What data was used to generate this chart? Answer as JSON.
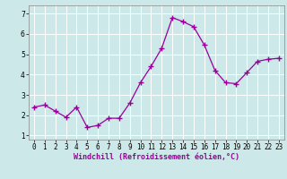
{
  "x": [
    0,
    1,
    2,
    3,
    4,
    5,
    6,
    7,
    8,
    9,
    10,
    11,
    12,
    13,
    14,
    15,
    16,
    17,
    18,
    19,
    20,
    21,
    22,
    23
  ],
  "y": [
    2.4,
    2.5,
    2.2,
    1.9,
    2.4,
    1.4,
    1.5,
    1.85,
    1.85,
    2.6,
    3.6,
    4.4,
    5.3,
    6.8,
    6.6,
    6.35,
    5.45,
    4.2,
    3.6,
    3.55,
    4.1,
    4.65,
    4.75,
    4.8
  ],
  "line_color": "#990099",
  "marker": "+",
  "marker_size": 4,
  "marker_linewidth": 1.0,
  "line_width": 0.9,
  "bg_color": "#cce8e8",
  "grid_color": "#ffffff",
  "xlabel": "Windchill (Refroidissement éolien,°C)",
  "xlabel_color": "#990099",
  "xlabel_fontsize": 6.0,
  "tick_fontsize": 5.5,
  "ylim": [
    0.8,
    7.4
  ],
  "xlim": [
    -0.5,
    23.5
  ],
  "yticks": [
    1,
    2,
    3,
    4,
    5,
    6,
    7
  ],
  "xticks": [
    0,
    1,
    2,
    3,
    4,
    5,
    6,
    7,
    8,
    9,
    10,
    11,
    12,
    13,
    14,
    15,
    16,
    17,
    18,
    19,
    20,
    21,
    22,
    23
  ]
}
